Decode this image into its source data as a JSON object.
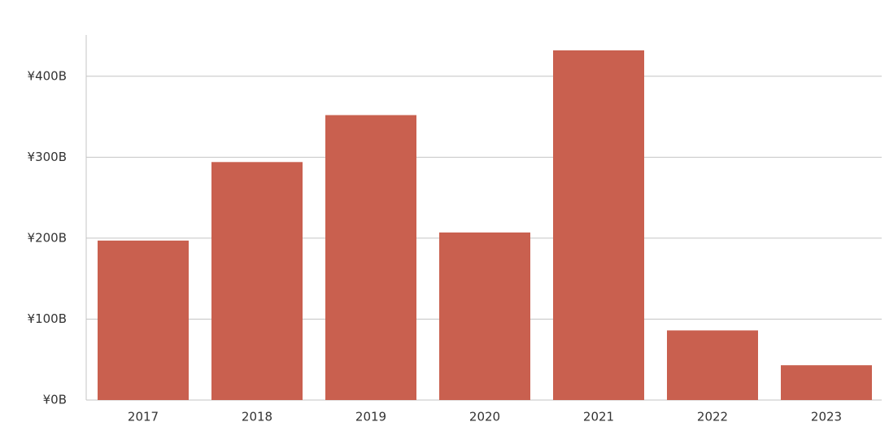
{
  "chart_data": {
    "type": "bar",
    "categories": [
      "2017",
      "2018",
      "2019",
      "2020",
      "2021",
      "2022",
      "2023"
    ],
    "values": [
      197,
      294,
      352,
      207,
      432,
      86,
      43
    ],
    "color": "#c9604f",
    "ylim": [
      0,
      450
    ],
    "yticks": [
      {
        "value": 0,
        "label": "¥0B"
      },
      {
        "value": 100,
        "label": "¥100B"
      },
      {
        "value": 200,
        "label": "¥200B"
      },
      {
        "value": 300,
        "label": "¥300B"
      },
      {
        "value": 400,
        "label": "¥400B"
      }
    ],
    "grid": true
  }
}
